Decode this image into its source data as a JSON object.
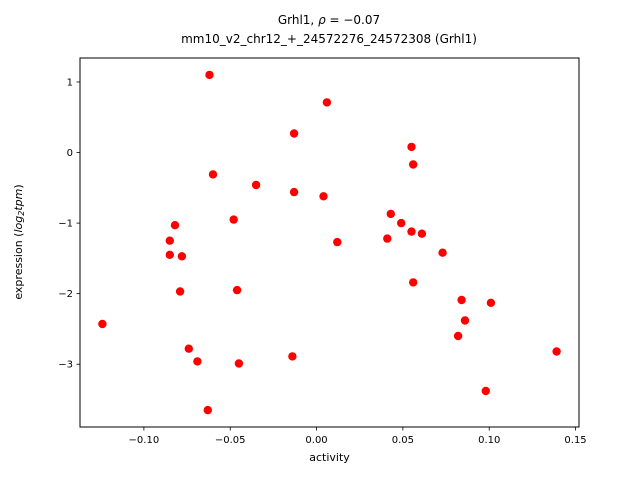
{
  "chart_data": {
    "type": "scatter",
    "title": "Grhl1, ρ = −0.07",
    "title_parts": {
      "prefix": "Grhl1, ",
      "rho": "ρ",
      "suffix": " = −0.07"
    },
    "subtitle": "mm10_v2_chr12_+_24572276_24572308 (Grhl1)",
    "rho_value": -0.07,
    "xlabel": "activity",
    "ylabel": "expression (log2tpm)",
    "ylabel_parts": {
      "prefix": "expression (",
      "log": "log",
      "sub": "2",
      "word": "tpm",
      "suffix": ")"
    },
    "marker_color": "#ff0000",
    "grid": false,
    "xlim": [
      -0.137,
      0.152
    ],
    "ylim": [
      -3.89,
      1.34
    ],
    "xticks": [
      -0.1,
      -0.05,
      0.0,
      0.05,
      0.1,
      0.15
    ],
    "xtick_labels": [
      "−0.10",
      "−0.05",
      "0.00",
      "0.05",
      "0.10",
      "0.15"
    ],
    "yticks": [
      1,
      0,
      -1,
      -2,
      -3
    ],
    "ytick_labels": [
      "1",
      "0",
      "−1",
      "−2",
      "−3"
    ],
    "points": [
      [
        -0.062,
        1.1
      ],
      [
        0.006,
        0.71
      ],
      [
        -0.013,
        0.27
      ],
      [
        0.055,
        0.08
      ],
      [
        0.056,
        -0.17
      ],
      [
        -0.06,
        -0.31
      ],
      [
        -0.035,
        -0.46
      ],
      [
        -0.013,
        -0.56
      ],
      [
        0.004,
        -0.62
      ],
      [
        0.043,
        -0.87
      ],
      [
        -0.048,
        -0.95
      ],
      [
        0.049,
        -1.0
      ],
      [
        -0.082,
        -1.03
      ],
      [
        0.055,
        -1.12
      ],
      [
        0.061,
        -1.15
      ],
      [
        0.041,
        -1.22
      ],
      [
        -0.085,
        -1.25
      ],
      [
        0.012,
        -1.27
      ],
      [
        0.073,
        -1.42
      ],
      [
        -0.085,
        -1.45
      ],
      [
        -0.078,
        -1.47
      ],
      [
        0.056,
        -1.84
      ],
      [
        -0.046,
        -1.95
      ],
      [
        -0.079,
        -1.97
      ],
      [
        0.084,
        -2.09
      ],
      [
        0.101,
        -2.13
      ],
      [
        0.086,
        -2.38
      ],
      [
        -0.124,
        -2.43
      ],
      [
        0.082,
        -2.6
      ],
      [
        -0.074,
        -2.78
      ],
      [
        0.139,
        -2.82
      ],
      [
        -0.014,
        -2.89
      ],
      [
        -0.069,
        -2.96
      ],
      [
        -0.045,
        -2.99
      ],
      [
        0.098,
        -3.38
      ],
      [
        -0.063,
        -3.65
      ]
    ]
  }
}
